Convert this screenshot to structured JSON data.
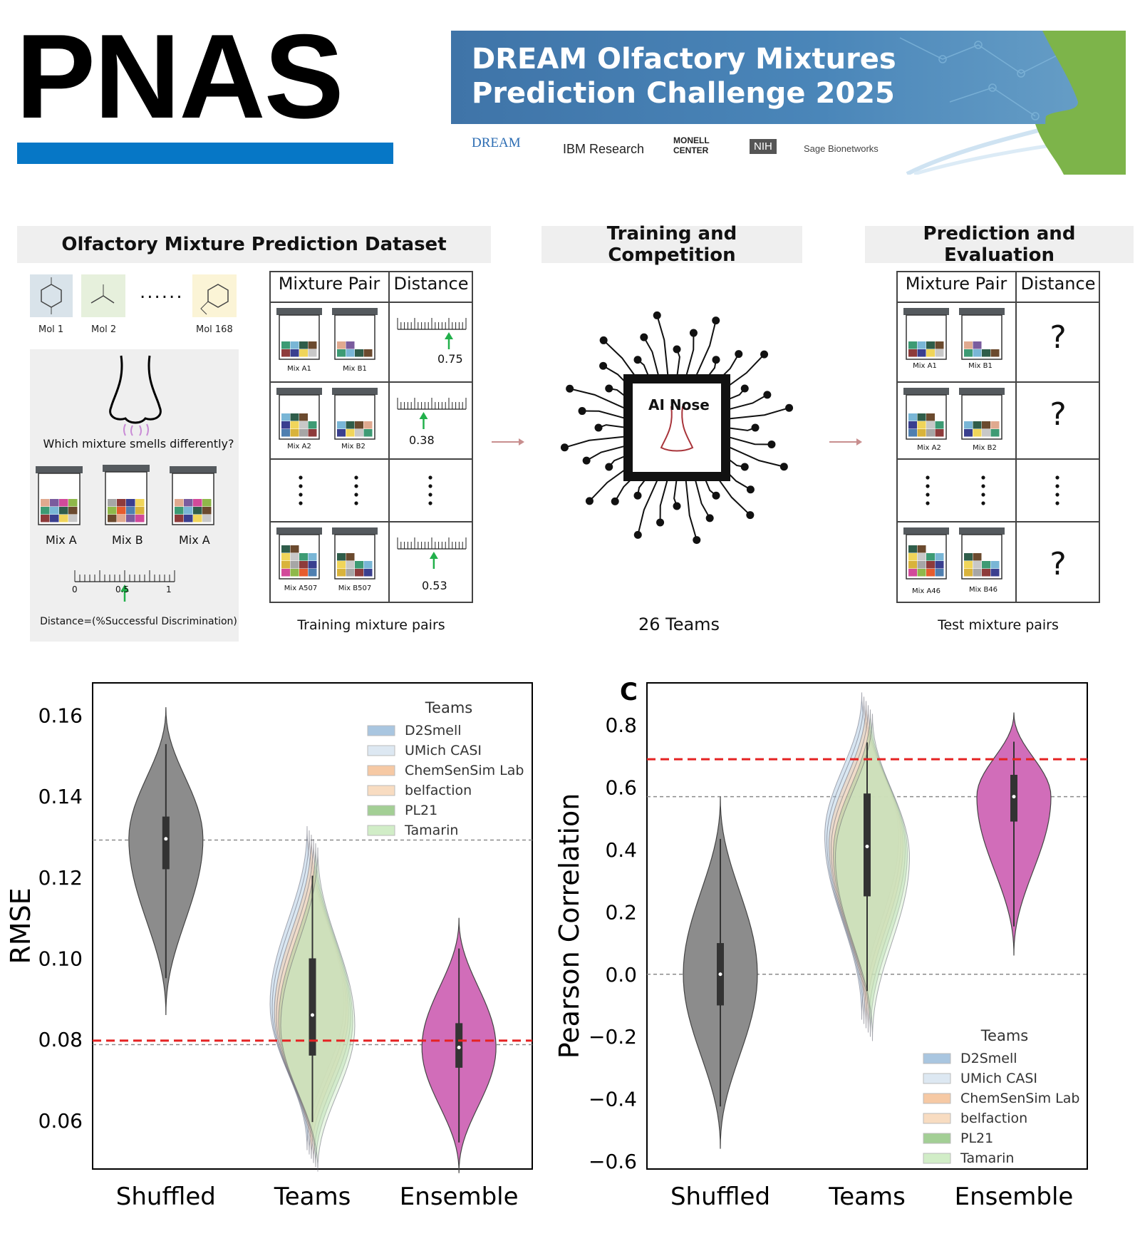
{
  "header": {
    "logo_text": "PNAS",
    "banner_title_line1": "DREAM Olfactory Mixtures",
    "banner_title_line2": "Prediction Challenge 2025",
    "sponsors": [
      "DREAM",
      "IBM Research",
      "MONELL CENTER",
      "NIH",
      "Sage Bionetworks"
    ],
    "colors": {
      "logo_bar": "#0677c6",
      "banner": "#4a86b9",
      "nose": "#7db44a"
    }
  },
  "panels": {
    "dataset": {
      "title": "Olfactory Mixture Prediction Dataset",
      "molecules": [
        "Mol 1",
        "Mol 2",
        "Mol 168"
      ],
      "ellipsis": "......",
      "question": "Which mixture smells differently?",
      "mixes": [
        "Mix A",
        "Mix B",
        "Mix A"
      ],
      "scale_labels": [
        "0",
        "0.5",
        "1"
      ],
      "distance_formula": "Distance=(%Successful Discrimination)"
    },
    "training_table": {
      "header_pair": "Mixture Pair",
      "header_distance": "Distance",
      "rows": [
        {
          "mix_a": "Mix A1",
          "mix_b": "Mix B1",
          "distance": "0.75",
          "value": 0.75
        },
        {
          "mix_a": "Mix A2",
          "mix_b": "Mix B2",
          "distance": "0.38",
          "value": 0.38
        },
        {
          "mix_a": "Mix A507",
          "mix_b": "Mix B507",
          "distance": "0.53",
          "value": 0.53
        }
      ],
      "caption": "Training mixture pairs"
    },
    "training": {
      "title": "Training and Competition",
      "chip_label": "AI Nose",
      "caption": "26 Teams"
    },
    "evaluation": {
      "title": "Prediction and Evaluation",
      "header_pair": "Mixture Pair",
      "header_distance": "Distance",
      "rows": [
        {
          "mix_a": "Mix A1",
          "mix_b": "Mix B1",
          "distance": "?"
        },
        {
          "mix_a": "Mix A2",
          "mix_b": "Mix B2",
          "distance": "?"
        },
        {
          "mix_a": "Mix A46",
          "mix_b": "Mix B46",
          "distance": "?"
        }
      ],
      "caption": "Test  mixture pairs"
    }
  },
  "chart_data": [
    {
      "type": "violin",
      "ylabel": "RMSE",
      "categories": [
        "Shuffled",
        "Teams",
        "Ensemble"
      ],
      "ylim": [
        0.048,
        0.168
      ],
      "yticks": [
        "0.06",
        "0.08",
        "0.10",
        "0.12",
        "0.14",
        "0.16"
      ],
      "legend_title": "Teams",
      "legend": [
        "D2Smell",
        "UMich CASI",
        "ChemSenSim Lab",
        "belfaction",
        "PL21",
        "Tamarin"
      ],
      "legend_colors": [
        "#a9c6e0",
        "#dde8f2",
        "#f6c9a4",
        "#f8dcc1",
        "#a3cf95",
        "#d1edc7"
      ],
      "legend_placement": "top-right",
      "reference_lines": {
        "red_dashed": 0.0797,
        "gray_dashed": [
          0.1292,
          0.0787
        ]
      },
      "violins": [
        {
          "category": "Shuffled",
          "min": 0.086,
          "max": 0.162,
          "median": 0.1295,
          "q1": 0.122,
          "q3": 0.135,
          "color": "#8c8c8c"
        },
        {
          "category": "Teams",
          "min": 0.05,
          "max": 0.13,
          "median": 0.086,
          "q1": 0.076,
          "q3": 0.1,
          "color": "#a8b889"
        },
        {
          "category": "Ensemble",
          "min": 0.047,
          "max": 0.11,
          "median": 0.078,
          "q1": 0.073,
          "q3": 0.084,
          "color": "#d16db9"
        }
      ]
    },
    {
      "type": "violin",
      "panel_label": "C",
      "ylabel": "Pearson Correlation",
      "categories": [
        "Shuffled",
        "Teams",
        "Ensemble"
      ],
      "ylim": [
        -0.625,
        0.935
      ],
      "yticks": [
        "−0.6",
        "−0.4",
        "−0.2",
        "0.0",
        "0.2",
        "0.4",
        "0.6",
        "0.8"
      ],
      "legend_title": "Teams",
      "legend": [
        "D2Smell",
        "UMich CASI",
        "ChemSenSim Lab",
        "belfaction",
        "PL21",
        "Tamarin"
      ],
      "legend_colors": [
        "#a9c6e0",
        "#dde8f2",
        "#f6c9a4",
        "#f8dcc1",
        "#a3cf95",
        "#d1edc7"
      ],
      "legend_placement": "lower-right",
      "reference_lines": {
        "red_dashed": 0.69,
        "gray_dashed": [
          0.57,
          0.0
        ]
      },
      "violins": [
        {
          "category": "Shuffled",
          "min": -0.56,
          "max": 0.57,
          "median": 0.0,
          "q1": -0.1,
          "q3": 0.1,
          "color": "#8c8c8c"
        },
        {
          "category": "Teams",
          "min": -0.18,
          "max": 0.87,
          "median": 0.41,
          "q1": 0.25,
          "q3": 0.58,
          "color": "#a8b889"
        },
        {
          "category": "Ensemble",
          "min": 0.06,
          "max": 0.84,
          "median": 0.57,
          "q1": 0.49,
          "q3": 0.64,
          "color": "#d16db9"
        }
      ]
    }
  ]
}
